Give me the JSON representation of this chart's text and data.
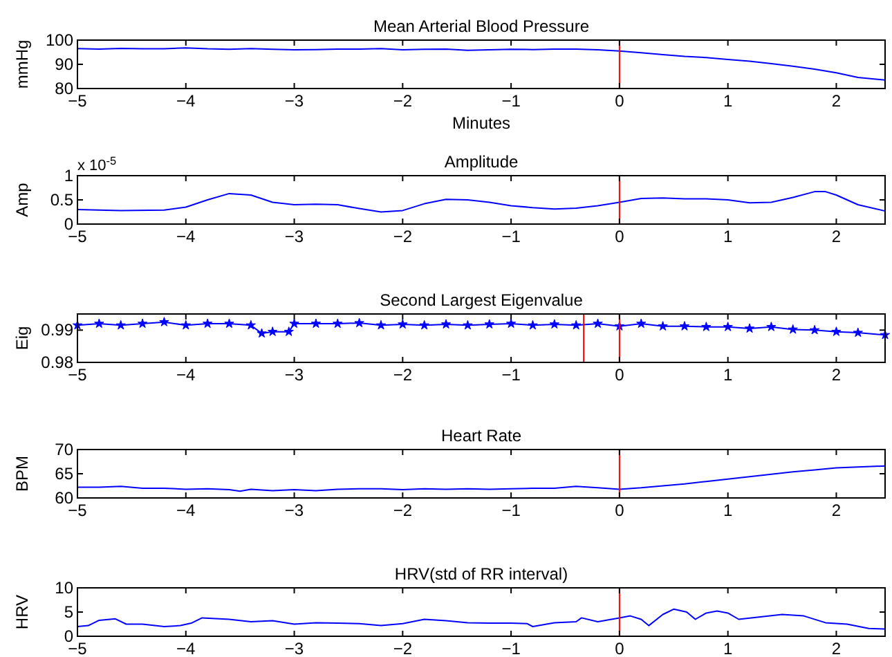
{
  "chart_data": [
    {
      "type": "line",
      "title": "Mean Arterial Blood Pressure",
      "xlabel": "Minutes",
      "ylabel": "mmHg",
      "xlim": [
        -5,
        2.45
      ],
      "xticks": [
        {
          "value": -5,
          "label": "−5"
        },
        {
          "value": -4,
          "label": "−4"
        },
        {
          "value": -3,
          "label": "−3"
        },
        {
          "value": -2,
          "label": "−2"
        },
        {
          "value": -1,
          "label": "−1"
        },
        0,
        1,
        2
      ],
      "ylim": [
        80,
        100
      ],
      "yticks": [
        80,
        90,
        100
      ],
      "series": [
        {
          "color": "#0000ff",
          "x": [
            -5,
            -4.8,
            -4.6,
            -4.4,
            -4.2,
            -4,
            -3.8,
            -3.6,
            -3.4,
            -3.2,
            -3,
            -2.8,
            -2.6,
            -2.4,
            -2.2,
            -2,
            -1.8,
            -1.6,
            -1.4,
            -1.2,
            -1,
            -0.8,
            -0.6,
            -0.4,
            -0.2,
            0,
            0.2,
            0.4,
            0.6,
            0.8,
            1,
            1.2,
            1.4,
            1.6,
            1.8,
            2,
            2.2,
            2.45
          ],
          "values": [
            96.5,
            96.3,
            96.6,
            96.4,
            96.4,
            96.8,
            96.4,
            96.2,
            96.5,
            96.2,
            96,
            96.1,
            96.3,
            96.3,
            96.5,
            96,
            96.2,
            96.3,
            95.8,
            96,
            96.2,
            96.1,
            96.3,
            96.3,
            96,
            95.5,
            94.8,
            94,
            93.3,
            92.8,
            92,
            91.3,
            90.3,
            89.2,
            88,
            86.5,
            84.6,
            83.5
          ]
        }
      ],
      "ref_lines": [
        {
          "axis": "x",
          "value": 0,
          "color": "#ff0000"
        }
      ]
    },
    {
      "type": "line",
      "title": "Amplitude",
      "ylabel": "Amp",
      "annotations": [
        "x 10$^{-5}$"
      ],
      "xlim": [
        -5,
        2.45
      ],
      "xticks": [
        {
          "value": -5,
          "label": "−5"
        },
        {
          "value": -4,
          "label": "−4"
        },
        {
          "value": -3,
          "label": "−3"
        },
        {
          "value": -2,
          "label": "−2"
        },
        {
          "value": -1,
          "label": "−1"
        },
        0,
        1,
        2
      ],
      "ylim": [
        0,
        1
      ],
      "yticks": [
        0,
        0.5,
        1
      ],
      "series": [
        {
          "color": "#0000ff",
          "x": [
            -5,
            -4.6,
            -4.2,
            -4,
            -3.8,
            -3.6,
            -3.4,
            -3.2,
            -3,
            -2.8,
            -2.6,
            -2.4,
            -2.2,
            -2,
            -1.8,
            -1.6,
            -1.4,
            -1.2,
            -1,
            -0.8,
            -0.6,
            -0.4,
            -0.2,
            0,
            0.2,
            0.4,
            0.6,
            0.8,
            1,
            1.2,
            1.4,
            1.6,
            1.8,
            1.9,
            2,
            2.2,
            2.45
          ],
          "values": [
            0.3,
            0.28,
            0.29,
            0.35,
            0.5,
            0.63,
            0.6,
            0.45,
            0.4,
            0.41,
            0.4,
            0.32,
            0.25,
            0.28,
            0.42,
            0.51,
            0.5,
            0.45,
            0.38,
            0.34,
            0.31,
            0.33,
            0.38,
            0.45,
            0.53,
            0.54,
            0.52,
            0.52,
            0.5,
            0.44,
            0.45,
            0.55,
            0.67,
            0.67,
            0.6,
            0.4,
            0.27
          ]
        }
      ],
      "ref_lines": [
        {
          "axis": "x",
          "value": 0,
          "color": "#ff0000"
        }
      ]
    },
    {
      "type": "line",
      "title": "Second Largest Eigenvalue",
      "ylabel": "Eig",
      "marker": "star",
      "xlim": [
        -5,
        2.45
      ],
      "xticks": [
        {
          "value": -5,
          "label": "−5"
        },
        {
          "value": -4,
          "label": "−4"
        },
        {
          "value": -3,
          "label": "−3"
        },
        {
          "value": -2,
          "label": "−2"
        },
        {
          "value": -1,
          "label": "−1"
        },
        0,
        1,
        2
      ],
      "ylim": [
        0.98,
        0.995
      ],
      "yticks": [
        0.98,
        0.99
      ],
      "series": [
        {
          "color": "#0000ff",
          "x": [
            -5,
            -4.8,
            -4.6,
            -4.4,
            -4.2,
            -4,
            -3.8,
            -3.6,
            -3.4,
            -3.3,
            -3.2,
            -3.05,
            -3,
            -2.8,
            -2.6,
            -2.4,
            -2.2,
            -2,
            -1.8,
            -1.6,
            -1.4,
            -1.2,
            -1,
            -0.8,
            -0.6,
            -0.4,
            -0.2,
            0,
            0.2,
            0.4,
            0.6,
            0.8,
            1,
            1.2,
            1.4,
            1.6,
            1.8,
            2,
            2.2,
            2.45
          ],
          "values": [
            0.9915,
            0.992,
            0.9915,
            0.992,
            0.9925,
            0.9915,
            0.992,
            0.992,
            0.9915,
            0.989,
            0.9895,
            0.9895,
            0.992,
            0.992,
            0.992,
            0.9922,
            0.9915,
            0.9918,
            0.9915,
            0.9918,
            0.9915,
            0.9918,
            0.992,
            0.9915,
            0.9918,
            0.9915,
            0.992,
            0.9912,
            0.992,
            0.9912,
            0.9912,
            0.991,
            0.991,
            0.9905,
            0.991,
            0.9902,
            0.99,
            0.9895,
            0.9892,
            0.9885
          ]
        }
      ],
      "ref_lines": [
        {
          "axis": "x",
          "value": -0.33,
          "color": "#ff0000"
        },
        {
          "axis": "x",
          "value": 0,
          "color": "#ff0000"
        }
      ]
    },
    {
      "type": "line",
      "title": "Heart Rate",
      "ylabel": "BPM",
      "xlim": [
        -5,
        2.45
      ],
      "xticks": [
        {
          "value": -5,
          "label": "−5"
        },
        {
          "value": -4,
          "label": "−4"
        },
        {
          "value": -3,
          "label": "−3"
        },
        {
          "value": -2,
          "label": "−2"
        },
        {
          "value": -1,
          "label": "−1"
        },
        0,
        1,
        2
      ],
      "ylim": [
        60,
        70
      ],
      "yticks": [
        60,
        65,
        70
      ],
      "series": [
        {
          "color": "#0000ff",
          "x": [
            -5,
            -4.8,
            -4.6,
            -4.4,
            -4.2,
            -4,
            -3.8,
            -3.6,
            -3.5,
            -3.4,
            -3.2,
            -3,
            -2.8,
            -2.6,
            -2.4,
            -2.2,
            -2,
            -1.8,
            -1.6,
            -1.4,
            -1.2,
            -1,
            -0.8,
            -0.6,
            -0.4,
            -0.2,
            0,
            0.2,
            0.4,
            0.6,
            0.8,
            1,
            1.2,
            1.4,
            1.6,
            1.8,
            2,
            2.2,
            2.45
          ],
          "values": [
            62.2,
            62.2,
            62.4,
            62,
            62,
            61.8,
            61.9,
            61.7,
            61.4,
            61.8,
            61.5,
            61.7,
            61.5,
            61.8,
            61.9,
            61.9,
            61.7,
            61.9,
            61.8,
            61.9,
            61.8,
            61.9,
            62,
            62,
            62.4,
            62.1,
            61.8,
            62.1,
            62.5,
            62.9,
            63.4,
            63.9,
            64.4,
            64.9,
            65.4,
            65.8,
            66.2,
            66.4,
            66.6
          ]
        }
      ],
      "ref_lines": [
        {
          "axis": "x",
          "value": 0,
          "color": "#ff0000"
        }
      ]
    },
    {
      "type": "line",
      "title": "HRV(std of RR interval)",
      "ylabel": "HRV",
      "xlim": [
        -5,
        2.45
      ],
      "xticks": [
        {
          "value": -5,
          "label": "−5"
        },
        {
          "value": -4,
          "label": "−4"
        },
        {
          "value": -3,
          "label": "−3"
        },
        {
          "value": -2,
          "label": "−2"
        },
        {
          "value": -1,
          "label": "−1"
        },
        0,
        1,
        2
      ],
      "ylim": [
        0,
        10
      ],
      "yticks": [
        0,
        5,
        10
      ],
      "series": [
        {
          "color": "#0000ff",
          "x": [
            -5,
            -4.9,
            -4.8,
            -4.65,
            -4.55,
            -4.4,
            -4.2,
            -4.05,
            -3.95,
            -3.85,
            -3.6,
            -3.4,
            -3.2,
            -3,
            -2.8,
            -2.6,
            -2.4,
            -2.2,
            -2,
            -1.8,
            -1.6,
            -1.4,
            -1.2,
            -1,
            -0.85,
            -0.8,
            -0.6,
            -0.4,
            -0.35,
            -0.2,
            0,
            0.1,
            0.2,
            0.27,
            0.4,
            0.5,
            0.62,
            0.7,
            0.8,
            0.9,
            1,
            1.1,
            1.3,
            1.5,
            1.7,
            1.9,
            2.1,
            2.3,
            2.45
          ],
          "values": [
            2,
            2.2,
            3.3,
            3.6,
            2.5,
            2.5,
            2,
            2.2,
            2.7,
            3.8,
            3.5,
            3,
            3.2,
            2.5,
            2.8,
            2.7,
            2.6,
            2.2,
            2.6,
            3.5,
            3.2,
            2.8,
            2.7,
            2.7,
            2.6,
            2,
            2.8,
            3,
            3.8,
            3,
            3.8,
            4.2,
            3.5,
            2.2,
            4.5,
            5.6,
            5,
            3.5,
            4.8,
            5.2,
            4.8,
            3.5,
            4,
            4.5,
            4.2,
            2.8,
            2.5,
            1.6,
            1.5
          ]
        }
      ],
      "ref_lines": [
        {
          "axis": "x",
          "value": 0,
          "color": "#ff0000"
        }
      ]
    }
  ]
}
